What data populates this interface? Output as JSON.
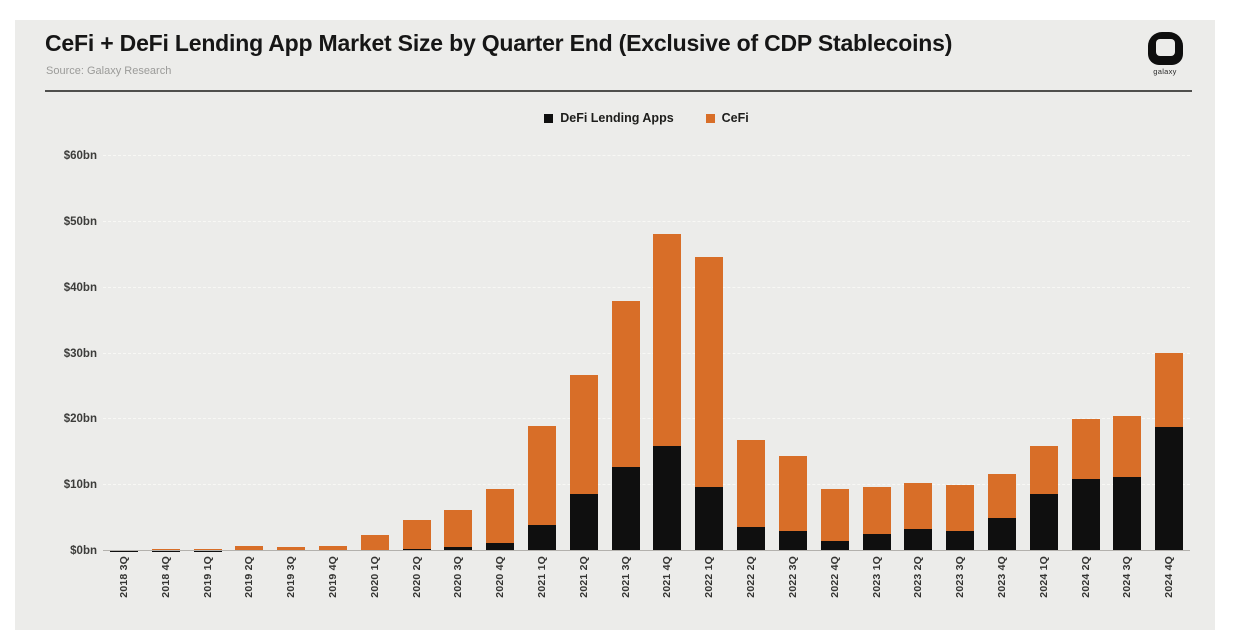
{
  "header": {
    "title": "CeFi + DeFi Lending App Market Size by Quarter End (Exclusive of CDP Stablecoins)",
    "source": "Source: Galaxy Research"
  },
  "logo": {
    "label": "galaxy"
  },
  "colors": {
    "defi": "#0F0F0F",
    "cefi": "#D86E28",
    "card_background": "#ECECEA",
    "page_background": "#FFFFFF"
  },
  "chart_data": {
    "type": "bar",
    "stacked": true,
    "title": "CeFi + DeFi Lending App Market Size by Quarter End (Exclusive of CDP Stablecoins)",
    "xlabel": "",
    "ylabel": "",
    "ylim": [
      0,
      60
    ],
    "y_ticks": [
      "$0bn",
      "$10bn",
      "$20bn",
      "$30bn",
      "$40bn",
      "$50bn",
      "$60bn"
    ],
    "grid": true,
    "legend_position": "top-center",
    "categories": [
      "2018 3Q",
      "2018 4Q",
      "2019 1Q",
      "2019 2Q",
      "2019 3Q",
      "2019 4Q",
      "2020 1Q",
      "2020 2Q",
      "2020 3Q",
      "2020 4Q",
      "2021 1Q",
      "2021 2Q",
      "2021 3Q",
      "2021 4Q",
      "2022 1Q",
      "2022 2Q",
      "2022 3Q",
      "2022 4Q",
      "2023 1Q",
      "2023 2Q",
      "2023 3Q",
      "2023 4Q",
      "2024 1Q",
      "2024 2Q",
      "2024 3Q",
      "2024 4Q"
    ],
    "series": [
      {
        "name": "DeFi Lending Apps",
        "color": "#0F0F0F",
        "values": [
          0.05,
          0.05,
          0.05,
          0.1,
          0.1,
          0.1,
          0.2,
          0.3,
          0.6,
          1.2,
          4.0,
          8.6,
          12.7,
          16.0,
          9.8,
          3.7,
          3.1,
          1.6,
          2.6,
          3.3,
          3.1,
          5.0,
          8.6,
          10.9,
          11.2,
          18.8
        ]
      },
      {
        "name": "CeFi",
        "color": "#D86E28",
        "values": [
          0.1,
          0.3,
          0.25,
          0.6,
          0.55,
          0.6,
          2.3,
          4.4,
          5.6,
          8.2,
          15.0,
          18.1,
          25.3,
          32.2,
          34.8,
          13.1,
          11.3,
          7.9,
          7.2,
          7.1,
          7.0,
          6.7,
          7.4,
          9.2,
          9.3,
          11.3
        ]
      }
    ]
  }
}
